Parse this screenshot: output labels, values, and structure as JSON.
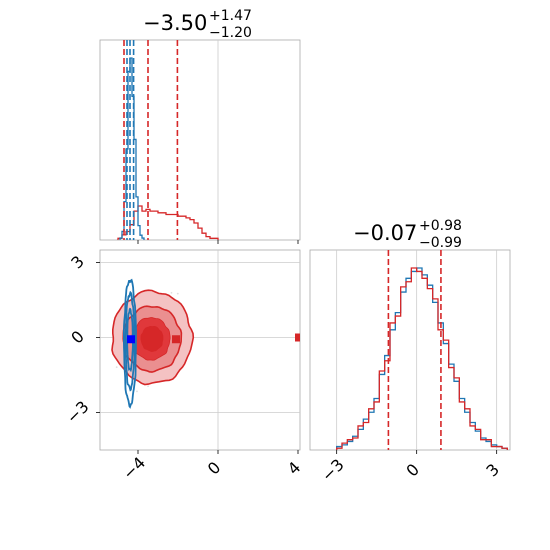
{
  "chart_data": [
    {
      "type": "histogram",
      "panel": "marginal-x",
      "title": {
        "main": "−3.50",
        "sup": "+1.47",
        "sub": "−1.20"
      },
      "xlim": [
        -5.9,
        4.1
      ],
      "series": [
        {
          "color": "#d62728",
          "bin_edges": [
            -5.0,
            -4.8,
            -4.6,
            -4.4,
            -4.2,
            -4.0,
            -3.8,
            -3.6,
            -3.4,
            -3.2,
            -3.0,
            -2.8,
            -2.6,
            -2.4,
            -2.2,
            -2.0,
            -1.8,
            -1.6,
            -1.4,
            -1.2,
            -1.0,
            -0.8,
            -0.6,
            -0.4,
            -0.2,
            0.0
          ],
          "counts": [
            1,
            3,
            5,
            9,
            17,
            20,
            17,
            18,
            17,
            17,
            16,
            16,
            15,
            15,
            15,
            14,
            14,
            13,
            12,
            10,
            7,
            4,
            2,
            1,
            1
          ],
          "quantiles": [
            -4.7,
            -3.5,
            -2.03
          ]
        },
        {
          "color": "#1f77b4",
          "bin_edges": [
            -4.9,
            -4.8,
            -4.7,
            -4.6,
            -4.5,
            -4.4,
            -4.3,
            -4.2,
            -4.1,
            -4.0,
            -3.9,
            -3.8,
            -3.7
          ],
          "counts": [
            2,
            9,
            40,
            95,
            176,
            190,
            150,
            105,
            45,
            15,
            5,
            2
          ],
          "quantiles": [
            -4.55,
            -4.4,
            -4.22
          ]
        }
      ]
    },
    {
      "type": "contour",
      "panel": "joint",
      "xlim": [
        -5.9,
        4.1
      ],
      "ylim": [
        -4.5,
        3.5
      ],
      "x_ticks": [
        "−4",
        "0",
        "4"
      ],
      "y_ticks": [
        "3",
        "0",
        "−3"
      ],
      "truth": {
        "x": 4.0,
        "y": 0.0,
        "color": "#d62728"
      },
      "markers": [
        {
          "x": -4.35,
          "y": -0.07,
          "color": "#0000ff"
        },
        {
          "x": -2.1,
          "y": -0.07,
          "color": "#d62728"
        }
      ],
      "red_levels": [
        {
          "cx": -3.3,
          "cy": 0.0,
          "rx": 2.0,
          "ry": 1.85
        },
        {
          "cx": -3.3,
          "cy": -0.05,
          "rx": 1.45,
          "ry": 1.3
        },
        {
          "cx": -3.35,
          "cy": -0.05,
          "rx": 0.95,
          "ry": 0.85
        },
        {
          "cx": -3.3,
          "cy": -0.05,
          "rx": 0.55,
          "ry": 0.5
        }
      ],
      "blue_levels": [
        {
          "cx": -4.4,
          "cy": -0.2,
          "rx": 0.3,
          "ry": 2.5
        },
        {
          "cx": -4.4,
          "cy": -0.15,
          "rx": 0.22,
          "ry": 1.9
        },
        {
          "cx": -4.4,
          "cy": -0.1,
          "rx": 0.14,
          "ry": 1.2
        }
      ]
    },
    {
      "type": "histogram",
      "panel": "marginal-y",
      "title": {
        "main": "−0.07",
        "sup": "+0.98",
        "sub": "−0.99"
      },
      "xlim": [
        -4.0,
        3.5
      ],
      "x_ticks": [
        "−3",
        "0",
        "3"
      ],
      "series": [
        {
          "color": "#1f77b4",
          "bin_edges": [
            -3.0,
            -2.8,
            -2.6,
            -2.4,
            -2.2,
            -2.0,
            -1.8,
            -1.6,
            -1.4,
            -1.2,
            -1.0,
            -0.8,
            -0.6,
            -0.4,
            -0.2,
            0.0,
            0.2,
            0.4,
            0.6,
            0.8,
            1.0,
            1.2,
            1.4,
            1.6,
            1.8,
            2.0,
            2.2,
            2.4,
            2.6,
            2.8,
            3.0,
            3.2,
            3.4
          ],
          "counts": [
            2,
            3,
            5,
            8,
            12,
            18,
            22,
            30,
            44,
            55,
            70,
            80,
            92,
            100,
            104,
            106,
            102,
            96,
            86,
            74,
            62,
            50,
            40,
            30,
            22,
            16,
            11,
            7,
            5,
            3,
            2,
            1
          ]
        },
        {
          "color": "#d62728",
          "bin_edges": [
            -3.0,
            -2.8,
            -2.6,
            -2.4,
            -2.2,
            -2.0,
            -1.8,
            -1.6,
            -1.4,
            -1.2,
            -1.0,
            -0.8,
            -0.6,
            -0.4,
            -0.2,
            0.0,
            0.2,
            0.4,
            0.6,
            0.8,
            1.0,
            1.2,
            1.4,
            1.6,
            1.8,
            2.0,
            2.2,
            2.4,
            2.6,
            2.8,
            3.0,
            3.2,
            3.4
          ],
          "counts": [
            1,
            4,
            6,
            7,
            14,
            16,
            24,
            28,
            46,
            52,
            74,
            78,
            95,
            98,
            106,
            104,
            100,
            94,
            88,
            70,
            64,
            48,
            42,
            28,
            24,
            14,
            12,
            6,
            6,
            2,
            2,
            1
          ],
          "quantiles": [
            -1.06,
            -0.07,
            0.91
          ]
        }
      ]
    }
  ]
}
